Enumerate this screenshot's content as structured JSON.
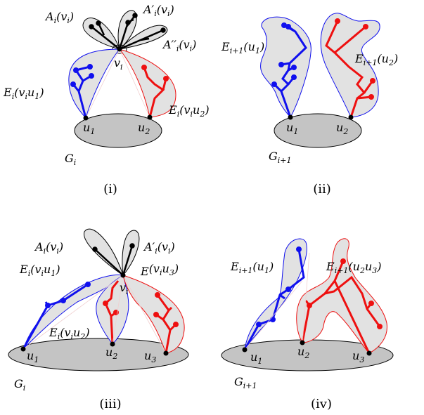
{
  "panels": {
    "p1": {
      "caption": "(i)",
      "A": {
        "base": "A",
        "sub": "i",
        "arg": "(v",
        "argsub": "i",
        "close": ")"
      },
      "A1": {
        "base": "A′",
        "sub": "i",
        "arg": "(v",
        "argsub": "i",
        "close": ")"
      },
      "A2": {
        "base": "A′′",
        "sub": "i",
        "arg": "(v",
        "argsub": "i",
        "close": ")"
      },
      "v": {
        "base": "v",
        "sub": "i"
      },
      "E1": {
        "base": "E",
        "sub": "i",
        "arg": "(v",
        "argsub": "i",
        "mid": "u",
        "midsub": "1",
        "close": ")"
      },
      "E2": {
        "base": "E",
        "sub": "i",
        "arg": "(v",
        "argsub": "i",
        "mid": "u",
        "midsub": "2",
        "close": ")"
      },
      "u1": {
        "base": "u",
        "sub": "1"
      },
      "u2": {
        "base": "u",
        "sub": "2"
      },
      "G": {
        "base": "G",
        "sub": "i"
      }
    },
    "p2": {
      "caption": "(ii)",
      "E1": {
        "base": "E",
        "sub": "i+1",
        "arg": "(u",
        "argsub": "1",
        "close": ")"
      },
      "E2": {
        "base": "E",
        "sub": "i+1",
        "arg": "(u",
        "argsub": "2",
        "close": ")"
      },
      "u1": {
        "base": "u",
        "sub": "1"
      },
      "u2": {
        "base": "u",
        "sub": "2"
      },
      "G": {
        "base": "G",
        "sub": "i+1"
      }
    },
    "p3": {
      "caption": "(iii)",
      "A": {
        "base": "A",
        "sub": "i",
        "arg": "(v",
        "argsub": "i",
        "close": ")"
      },
      "A1": {
        "base": "A′",
        "sub": "i",
        "arg": "(v",
        "argsub": "i",
        "close": ")"
      },
      "E1": {
        "base": "E",
        "sub": "i",
        "arg": "(v",
        "argsub": "i",
        "mid": "u",
        "midsub": "1",
        "close": ")"
      },
      "E3": {
        "base": "E",
        "sub": "",
        "arg": "(v",
        "argsub": "i",
        "mid": "u",
        "midsub": "3",
        "close": ")"
      },
      "v": {
        "base": "v",
        "sub": "i"
      },
      "E2": {
        "base": "E",
        "sub": "i",
        "arg": "(v",
        "argsub": "i",
        "mid": "u",
        "midsub": "2",
        "close": ")"
      },
      "u1": {
        "base": "u",
        "sub": "1"
      },
      "u2": {
        "base": "u",
        "sub": "2"
      },
      "u3": {
        "base": "u",
        "sub": "3"
      },
      "G": {
        "base": "G",
        "sub": "i"
      }
    },
    "p4": {
      "caption": "(iv)",
      "E1": {
        "base": "E",
        "sub": "i+1",
        "arg": "(u",
        "argsub": "1",
        "close": ")"
      },
      "E2": {
        "base": "E",
        "sub": "i+1",
        "arg": "(u",
        "argsub": "2",
        "mid": "u",
        "midsub": "3",
        "close": ")"
      },
      "u1": {
        "base": "u",
        "sub": "1"
      },
      "u2": {
        "base": "u",
        "sub": "2"
      },
      "u3": {
        "base": "u",
        "sub": "3"
      },
      "G": {
        "base": "G",
        "sub": "i+1"
      }
    }
  },
  "colors": {
    "blue": "#1010ee",
    "red": "#ee1010",
    "fill": "#e2e2e2",
    "base": "#c4c4c4",
    "black": "#000000"
  }
}
